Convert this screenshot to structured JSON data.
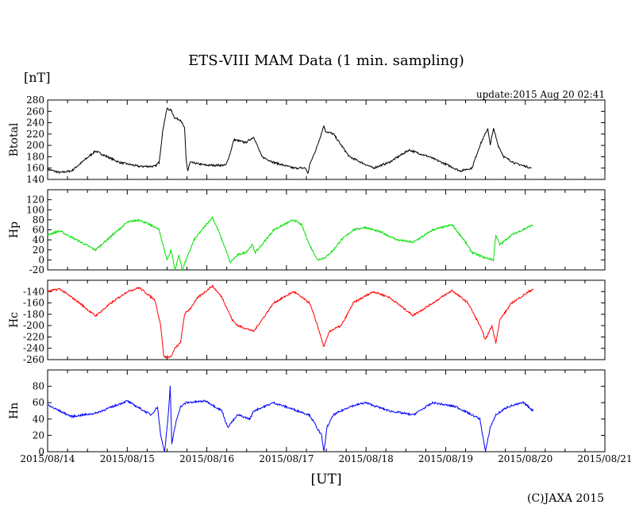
{
  "chart_data": {
    "type": "line",
    "title": "ETS-VIII MAM Data (1 min. sampling)",
    "unit_label": "[nT]",
    "update_label": "update:2015 Aug 20 02:41",
    "xlabel": "[UT]",
    "copyright": "(C)JAXA 2015",
    "x_unit": "days since 2015/08/14 00:00 UT",
    "xlim": [
      0,
      7
    ],
    "x_ticks": [
      "2015/08/14",
      "2015/08/15",
      "2015/08/16",
      "2015/08/17",
      "2015/08/18",
      "2015/08/19",
      "2015/08/20",
      "2015/08/21"
    ],
    "grid": false,
    "panels": [
      {
        "name": "Btotal",
        "color": "#000000",
        "ylim": [
          140,
          280
        ],
        "yticks": [
          140,
          160,
          180,
          200,
          220,
          240,
          260,
          280
        ],
        "t": [
          0,
          0.15,
          0.3,
          0.6,
          0.9,
          1.15,
          1.35,
          1.4,
          1.45,
          1.5,
          1.55,
          1.6,
          1.67,
          1.72,
          1.74,
          1.76,
          1.79,
          1.99,
          2.24,
          2.29,
          2.34,
          2.49,
          2.59,
          2.69,
          2.84,
          3.09,
          3.24,
          3.27,
          3.29,
          3.39,
          3.47,
          3.49,
          3.59,
          3.69,
          3.79,
          4.09,
          4.29,
          4.54,
          4.79,
          5.03,
          5.18,
          5.33,
          5.43,
          5.53,
          5.56,
          5.6,
          5.66,
          5.73,
          5.88,
          6.08
        ],
        "v": [
          158,
          152,
          155,
          190,
          170,
          163,
          163,
          170,
          230,
          265,
          262,
          248,
          245,
          230,
          175,
          155,
          170,
          165,
          165,
          185,
          210,
          205,
          215,
          180,
          170,
          160,
          160,
          150,
          165,
          200,
          235,
          225,
          220,
          200,
          180,
          160,
          170,
          192,
          180,
          165,
          155,
          160,
          200,
          230,
          200,
          230,
          200,
          180,
          168,
          160
        ]
      },
      {
        "name": "Hp",
        "color": "#00e000",
        "ylim": [
          -20,
          140
        ],
        "yticks": [
          -20,
          0,
          20,
          40,
          60,
          80,
          100,
          120,
          140
        ],
        "t": [
          0,
          0.15,
          0.6,
          1.0,
          1.15,
          1.35,
          1.4,
          1.45,
          1.5,
          1.55,
          1.6,
          1.65,
          1.69,
          1.74,
          1.84,
          1.99,
          2.07,
          2.14,
          2.24,
          2.29,
          2.39,
          2.49,
          2.57,
          2.61,
          2.69,
          2.84,
          3.09,
          3.19,
          3.29,
          3.39,
          3.49,
          3.59,
          3.69,
          3.84,
          3.99,
          4.19,
          4.39,
          4.59,
          4.84,
          5.08,
          5.23,
          5.33,
          5.48,
          5.6,
          5.63,
          5.68,
          5.83,
          6.1
        ],
        "v": [
          50,
          58,
          20,
          75,
          80,
          65,
          60,
          30,
          0,
          20,
          -20,
          10,
          -20,
          0,
          40,
          70,
          85,
          60,
          20,
          -5,
          10,
          15,
          30,
          15,
          30,
          60,
          80,
          70,
          30,
          0,
          5,
          20,
          40,
          60,
          65,
          55,
          40,
          35,
          60,
          70,
          40,
          15,
          5,
          0,
          50,
          30,
          50,
          70
        ]
      },
      {
        "name": "Hc",
        "color": "#ff0000",
        "ylim": [
          -260,
          -120
        ],
        "yticks": [
          -260,
          -240,
          -220,
          -200,
          -180,
          -160,
          -140,
          -120
        ],
        "t": [
          0,
          0.15,
          0.4,
          0.6,
          0.8,
          1.0,
          1.15,
          1.35,
          1.42,
          1.46,
          1.55,
          1.6,
          1.67,
          1.72,
          1.79,
          1.89,
          2.07,
          2.19,
          2.32,
          2.39,
          2.59,
          2.69,
          2.84,
          3.09,
          3.29,
          3.39,
          3.47,
          3.54,
          3.69,
          3.84,
          4.09,
          4.29,
          4.59,
          4.84,
          5.08,
          5.28,
          5.43,
          5.5,
          5.58,
          5.63,
          5.68,
          5.83,
          6.1
        ],
        "v": [
          -140,
          -135,
          -160,
          -183,
          -160,
          -140,
          -133,
          -155,
          -200,
          -255,
          -255,
          -240,
          -230,
          -180,
          -170,
          -150,
          -130,
          -150,
          -190,
          -200,
          -210,
          -190,
          -160,
          -140,
          -160,
          -200,
          -238,
          -210,
          -200,
          -160,
          -140,
          -150,
          -182,
          -160,
          -138,
          -160,
          -200,
          -225,
          -200,
          -230,
          -190,
          -160,
          -135
        ]
      },
      {
        "name": "Hn",
        "color": "#0000ff",
        "ylim": [
          0,
          100
        ],
        "yticks": [
          0,
          20,
          40,
          60,
          80,
          100
        ],
        "t": [
          0,
          0.3,
          0.6,
          1.0,
          1.3,
          1.38,
          1.42,
          1.47,
          1.52,
          1.54,
          1.56,
          1.62,
          1.67,
          1.74,
          1.99,
          2.19,
          2.26,
          2.39,
          2.54,
          2.59,
          2.84,
          3.14,
          3.29,
          3.44,
          3.47,
          3.51,
          3.59,
          3.79,
          3.99,
          4.29,
          4.59,
          4.84,
          5.13,
          5.33,
          5.43,
          5.5,
          5.56,
          5.63,
          5.78,
          5.98,
          6.1
        ],
        "v": [
          57,
          43,
          47,
          62,
          45,
          55,
          20,
          0,
          50,
          80,
          10,
          40,
          55,
          60,
          62,
          50,
          30,
          45,
          40,
          50,
          60,
          50,
          45,
          20,
          0,
          30,
          45,
          55,
          60,
          50,
          45,
          60,
          55,
          45,
          40,
          0,
          30,
          45,
          55,
          60,
          50
        ]
      }
    ]
  }
}
